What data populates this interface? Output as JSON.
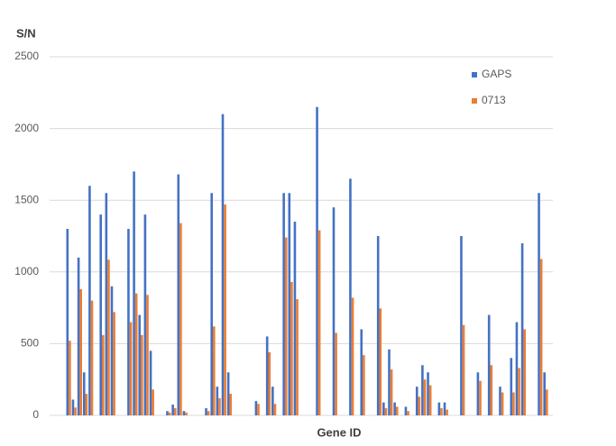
{
  "chart_data": {
    "type": "bar",
    "y_label": "S/N",
    "x_label": "Gene ID",
    "categories": [
      null,
      null,
      null,
      null,
      null,
      null,
      null,
      null,
      null,
      null,
      null,
      null,
      null,
      null,
      null,
      null,
      null,
      null,
      null,
      null,
      null,
      null,
      null,
      null,
      null,
      null,
      null,
      null,
      null,
      null,
      null,
      null,
      null,
      null,
      null,
      null,
      null,
      null,
      null,
      null,
      null,
      null,
      null,
      null,
      null,
      null,
      null,
      null,
      null,
      null,
      null,
      null,
      null,
      null,
      null,
      null,
      null,
      null,
      null,
      null,
      null,
      null,
      null,
      null,
      null,
      null,
      null,
      null,
      null,
      null,
      null,
      null,
      null,
      null,
      null,
      null,
      null,
      null,
      null,
      null,
      null,
      null,
      null,
      null,
      null,
      null,
      null
    ],
    "series": [
      {
        "name": "GAPS",
        "color": "#4472c4",
        "values": [
          1300,
          110,
          1100,
          300,
          1600,
          null,
          1400,
          1550,
          900,
          null,
          null,
          1300,
          1700,
          700,
          1400,
          450,
          null,
          null,
          30,
          75,
          1680,
          30,
          null,
          null,
          null,
          50,
          1550,
          200,
          2100,
          300,
          null,
          null,
          null,
          null,
          100,
          null,
          550,
          200,
          null,
          1550,
          1550,
          1350,
          null,
          null,
          null,
          2150,
          null,
          null,
          1450,
          null,
          null,
          1650,
          null,
          600,
          null,
          null,
          1250,
          90,
          460,
          90,
          null,
          60,
          null,
          200,
          350,
          300,
          null,
          90,
          90,
          null,
          null,
          1250,
          null,
          null,
          300,
          null,
          700,
          null,
          200,
          null,
          400,
          650,
          1200,
          null,
          null,
          1550,
          300
        ]
      },
      {
        "name": "0713",
        "color": "#ed7d31",
        "values": [
          520,
          55,
          880,
          150,
          800,
          null,
          560,
          1085,
          720,
          null,
          null,
          650,
          850,
          560,
          840,
          180,
          null,
          null,
          20,
          50,
          1340,
          20,
          null,
          null,
          null,
          30,
          620,
          120,
          1470,
          150,
          null,
          null,
          null,
          null,
          80,
          null,
          440,
          80,
          null,
          1240,
          930,
          810,
          null,
          null,
          null,
          1290,
          null,
          null,
          575,
          null,
          null,
          820,
          null,
          420,
          null,
          null,
          745,
          50,
          320,
          60,
          null,
          30,
          null,
          130,
          250,
          210,
          null,
          50,
          40,
          null,
          null,
          630,
          null,
          null,
          240,
          null,
          350,
          null,
          160,
          null,
          160,
          330,
          600,
          null,
          null,
          1090,
          180
        ]
      }
    ],
    "ylim": [
      0,
      2500
    ],
    "yticks": [
      0,
      500,
      1000,
      1500,
      2000,
      2500
    ],
    "grid": true,
    "legend": "upper right"
  }
}
